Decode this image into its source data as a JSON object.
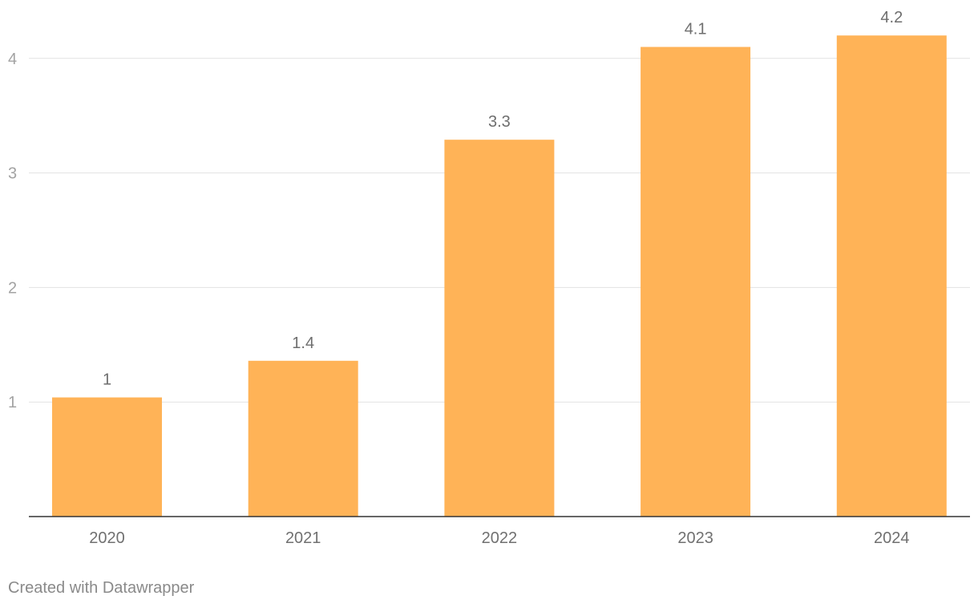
{
  "chart_data": {
    "type": "bar",
    "categories": [
      "2020",
      "2021",
      "2022",
      "2023",
      "2024"
    ],
    "values": [
      1.04,
      1.36,
      3.29,
      4.1,
      4.2
    ],
    "value_labels": [
      "1",
      "1.4",
      "3.3",
      "4.1",
      "4.2"
    ],
    "y_ticks": [
      "1",
      "2",
      "3",
      "4"
    ],
    "ylim": [
      0,
      4.5
    ],
    "title": "",
    "xlabel": "",
    "ylabel": "",
    "grid": true,
    "bar_color": "#ffb357"
  },
  "footer": {
    "credit": "Created with Datawrapper"
  }
}
